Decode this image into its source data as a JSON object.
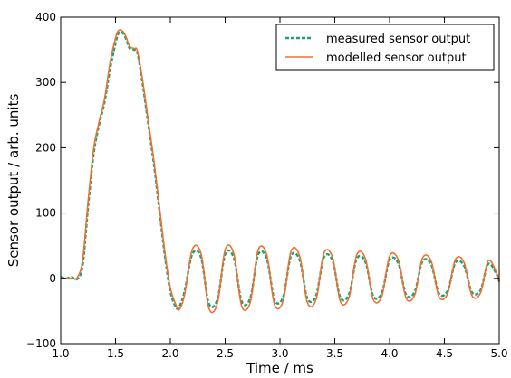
{
  "chart_data": {
    "type": "line",
    "title": "",
    "xlabel": "Time / ms",
    "ylabel": "Sensor output / arb. units",
    "xlim": [
      1.0,
      5.0
    ],
    "ylim": [
      -100,
      400
    ],
    "xticks": [
      "1.0",
      "1.5",
      "2.0",
      "2.5",
      "3.0",
      "3.5",
      "4.0",
      "4.5",
      "5.0"
    ],
    "yticks": [
      "−100",
      "0",
      "100",
      "200",
      "300",
      "400"
    ],
    "xtick_values": [
      1.0,
      1.5,
      2.0,
      2.5,
      3.0,
      3.5,
      4.0,
      4.5,
      5.0
    ],
    "ytick_values": [
      -100,
      0,
      100,
      200,
      300,
      400
    ],
    "grid": false,
    "legend_position": "top-right",
    "series": [
      {
        "name": "measured sensor output",
        "color": "#1aa37a",
        "style": "dashed",
        "x": [
          1.0,
          1.05,
          1.1,
          1.15,
          1.2,
          1.25,
          1.3,
          1.35,
          1.4,
          1.45,
          1.5,
          1.53,
          1.57,
          1.6,
          1.63,
          1.67,
          1.7,
          1.75,
          1.8,
          1.85,
          1.9,
          1.95,
          2.0,
          2.05,
          2.08,
          2.13,
          2.2,
          2.28,
          2.35,
          2.43,
          2.5,
          2.58,
          2.65,
          2.73,
          2.8,
          2.88,
          2.95,
          3.03,
          3.1,
          3.18,
          3.25,
          3.33,
          3.4,
          3.48,
          3.55,
          3.63,
          3.7,
          3.78,
          3.85,
          3.93,
          4.0,
          4.08,
          4.15,
          4.23,
          4.3,
          4.38,
          4.45,
          4.53,
          4.6,
          4.68,
          4.75,
          4.83,
          4.9,
          4.98,
          5.0
        ],
        "y": [
          2,
          0,
          2,
          -1,
          20,
          110,
          190,
          235,
          270,
          320,
          360,
          376,
          375,
          365,
          352,
          350,
          345,
          295,
          235,
          175,
          105,
          35,
          -20,
          -44,
          -44,
          -20,
          37,
          32,
          -38,
          -32,
          37,
          31,
          -35,
          -30,
          36,
          30,
          -33,
          -28,
          34,
          28,
          -31,
          -26,
          32,
          27,
          -29,
          -24,
          30,
          25,
          -27,
          -22,
          28,
          23,
          -25,
          -20,
          26,
          21,
          -23,
          -19,
          24,
          19,
          -21,
          -18,
          22,
          5,
          -5
        ]
      },
      {
        "name": "modelled sensor output",
        "color": "#f07030",
        "style": "solid",
        "x": [
          1.0,
          1.05,
          1.1,
          1.15,
          1.2,
          1.25,
          1.3,
          1.35,
          1.4,
          1.45,
          1.5,
          1.53,
          1.57,
          1.6,
          1.63,
          1.67,
          1.7,
          1.75,
          1.8,
          1.85,
          1.9,
          1.95,
          2.0,
          2.05,
          2.08,
          2.13,
          2.2,
          2.28,
          2.35,
          2.43,
          2.5,
          2.58,
          2.65,
          2.73,
          2.8,
          2.88,
          2.95,
          3.03,
          3.1,
          3.18,
          3.25,
          3.33,
          3.4,
          3.48,
          3.55,
          3.63,
          3.7,
          3.78,
          3.85,
          3.93,
          4.0,
          4.08,
          4.15,
          4.23,
          4.3,
          4.38,
          4.45,
          4.53,
          4.6,
          4.68,
          4.75,
          4.83,
          4.9,
          4.98,
          5.0
        ],
        "y": [
          0,
          0,
          0,
          1,
          28,
          118,
          198,
          240,
          275,
          330,
          368,
          380,
          378,
          368,
          355,
          352,
          348,
          300,
          240,
          180,
          110,
          40,
          -15,
          -40,
          -48,
          -25,
          44,
          38,
          -45,
          -38,
          44,
          37,
          -42,
          -36,
          43,
          36,
          -40,
          -34,
          41,
          34,
          -37,
          -32,
          38,
          32,
          -35,
          -29,
          36,
          30,
          -32,
          -27,
          34,
          28,
          -30,
          -25,
          31,
          26,
          -28,
          -23,
          29,
          24,
          -26,
          -22,
          27,
          7,
          -6
        ]
      }
    ]
  }
}
